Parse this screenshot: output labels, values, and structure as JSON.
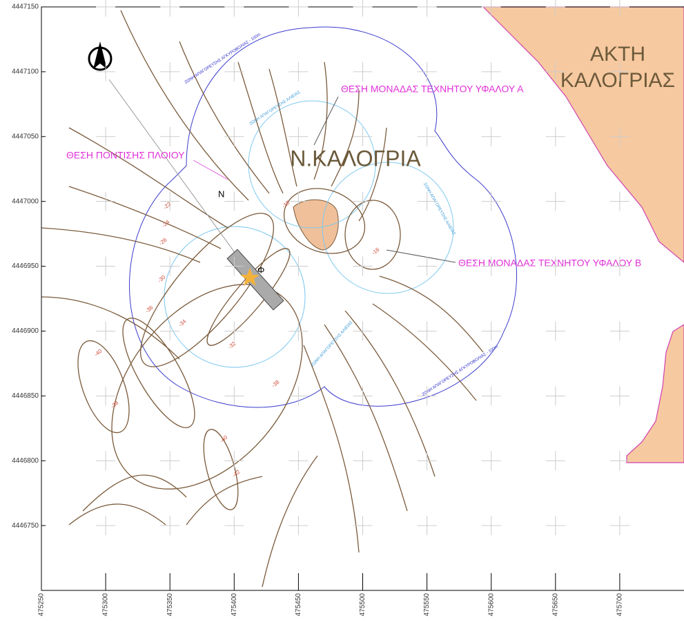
{
  "axes": {
    "xlim": [
      475250,
      475750
    ],
    "ylim": [
      4446700,
      4447150
    ],
    "xticks": [
      475250,
      475300,
      475350,
      475400,
      475450,
      475500,
      475550,
      475600,
      475650,
      475700
    ],
    "yticks": [
      4447150,
      4447100,
      4447050,
      4447000,
      4446950,
      4446900,
      4446850,
      4446800,
      4446750
    ]
  },
  "labels": {
    "coast": [
      "ΑΚΤΗ",
      "ΚΑΛΟΓΡΙΑΣ"
    ],
    "island": "Ν.ΚΑΛΟΓΡΙΑ",
    "reef_a": "ΘΕΣΗ ΜΟΝΑΔΑΣ ΤΕΧΝΗΤΟΥ ΥΦΑΛΟΥ Α",
    "reef_b": "ΘΕΣΗ ΜΟΝΑΔΑΣ ΤΕΧΝΗΤΟΥ ΥΦΑΛΟΥ Β",
    "ship": "ΘΕΣΗ ΠΟΝΤΙΣΗΣ ΠΛΟΙΟΥ",
    "ship_mark": "Φ",
    "anchor_mark": "N",
    "anchoring_zone": [
      "ΖΩΝΗ ΑΠΑΓΟΡΕΥΣΗΣ ΑΓΚΥΡΟΒΟΛΙΑΣ - 100m",
      "ΖΩΝΗ ΑΠΑΓΟΡΕΥΣΗΣ ΑΓΚΥΡΟΒΟΛΙΑΣ - 100m"
    ],
    "fishing_zone": [
      "ΖΩΝΗ ΑΠΑΓΟΡΕΥΣΗΣ ΑΛΙΕΙΑΣ",
      "ΖΩΝΗ ΑΠΑΓΟΡΕΥΣΗΣ ΑΛΙΕΙΑΣ",
      "ΖΩΝΗ ΑΠΑΓΟΡΕΥΣΗΣ ΑΛΙΕΙΑΣ"
    ]
  },
  "depth_labels": [
    "-22",
    "-24",
    "-26",
    "-30",
    "-36",
    "-38",
    "-40",
    "-32",
    "-34",
    "-40",
    "-42",
    "-38",
    "-16",
    "-18"
  ]
}
